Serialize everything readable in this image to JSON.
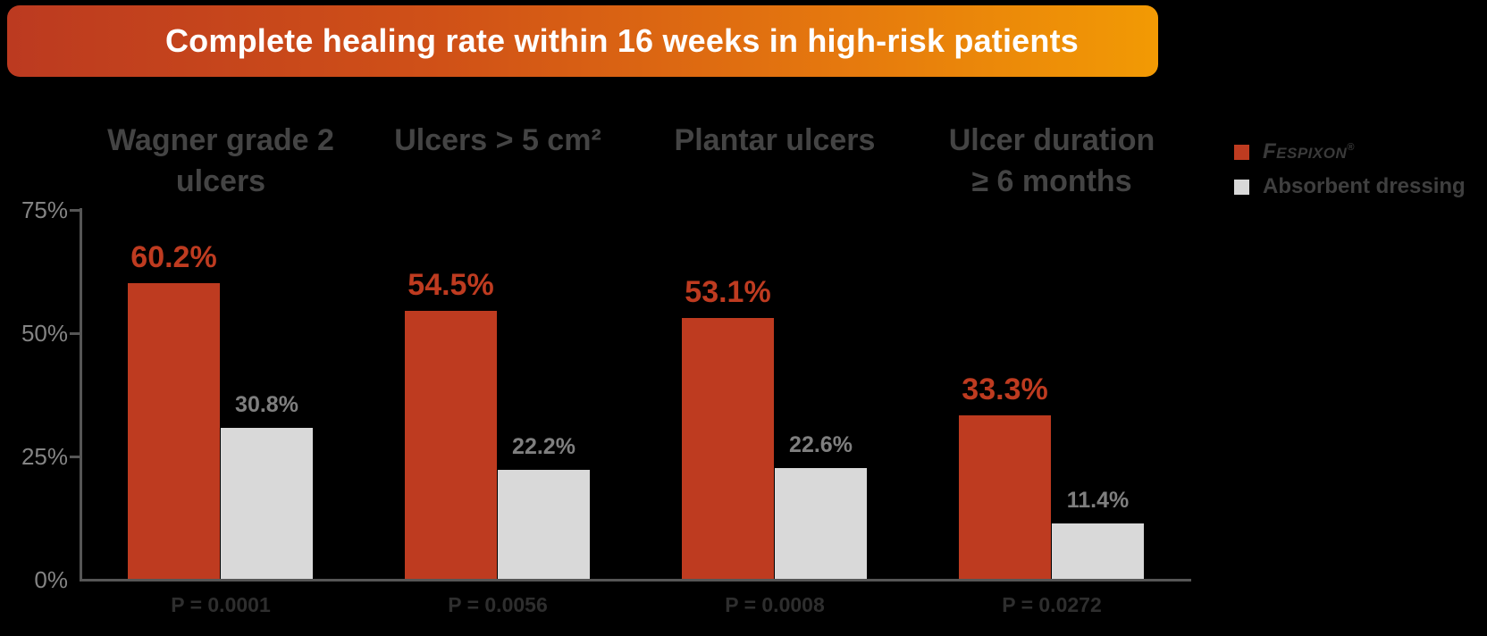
{
  "chart_data": {
    "type": "bar",
    "title": "Complete healing rate within 16 weeks in high-risk patients",
    "categories": [
      "Wagner grade 2 ulcers",
      "Ulcers > 5 cm²",
      "Plantar ulcers",
      "Ulcer duration ≥ 6 months"
    ],
    "categories_lines": [
      [
        "Wagner grade 2",
        "ulcers"
      ],
      [
        "Ulcers > 5 cm²"
      ],
      [
        "Plantar ulcers"
      ],
      [
        "Ulcer duration",
        "≥ 6 months"
      ]
    ],
    "series": [
      {
        "name": "Fespixon",
        "color": "#be3b20",
        "values": [
          60.2,
          54.5,
          53.1,
          33.3
        ],
        "labels": [
          "60.2%",
          "54.5%",
          "53.1%",
          "33.3%"
        ]
      },
      {
        "name": "Absorbent dressing",
        "color": "#d9d9d9",
        "values": [
          30.8,
          22.2,
          22.6,
          11.4
        ],
        "labels": [
          "30.8%",
          "22.2%",
          "22.6%",
          "11.4%"
        ]
      }
    ],
    "p_values": [
      "P = 0.0001",
      "P = 0.0056",
      "P = 0.0008",
      "P = 0.0272"
    ],
    "y_axis": {
      "ticks": [
        {
          "label": "75%",
          "value": 75
        },
        {
          "label": "50%",
          "value": 50
        },
        {
          "label": "25%",
          "value": 25
        },
        {
          "label": "0%",
          "value": 0
        }
      ],
      "ylim": [
        0,
        75
      ]
    },
    "grid": false,
    "legend_position": "top-right"
  },
  "legend": {
    "fespixon": {
      "label": "Fespixon",
      "reg": "®",
      "color": "#be3b20"
    },
    "absorbent": {
      "label": "Absorbent dressing",
      "color": "#d9d9d9"
    }
  },
  "colors": {
    "background": "#000000",
    "banner_gradient_start": "#bc3a20",
    "banner_gradient_end": "#f29a04",
    "title_text": "#ffffff",
    "bar_red": "#be3b20",
    "bar_gray": "#d9d9d9",
    "header_text": "#444444",
    "value_gray_text": "#7f7f7f",
    "p_value_text": "#2e2e2e",
    "axis": "#565656",
    "axis_label": "#848484"
  }
}
